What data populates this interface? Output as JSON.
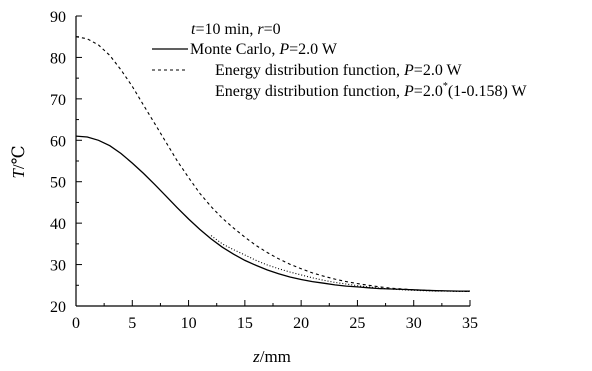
{
  "chart_data": {
    "type": "line",
    "xlabel_italic": "z",
    "xlabel_rest": "/mm",
    "ylabel_italic": "T",
    "ylabel_rest": "/℃",
    "xlim": [
      0,
      35
    ],
    "ylim": [
      20,
      90
    ],
    "x_ticks": [
      0,
      5,
      10,
      15,
      20,
      25,
      30,
      35
    ],
    "y_ticks": [
      20,
      30,
      40,
      50,
      60,
      70,
      80,
      90
    ],
    "grid": false,
    "legend_position": "top-right",
    "annotation": {
      "t_label": "t",
      "t_value": "=10 min, ",
      "r_label": "r",
      "r_value": "=0"
    },
    "series": [
      {
        "style": "solid",
        "legend_prefix": "Monte Carlo, ",
        "legend_p": "P",
        "legend_suffix": "=2.0 W",
        "x": [
          0,
          1,
          2,
          3,
          4,
          5,
          6,
          7,
          8,
          9,
          10,
          11,
          12,
          13,
          14,
          15,
          16,
          17,
          18,
          19,
          20,
          21,
          22,
          23,
          24,
          25,
          26,
          27,
          28,
          29,
          30,
          31,
          32,
          33,
          34,
          35
        ],
        "y": [
          61,
          60.8,
          60,
          58.7,
          56.8,
          54.5,
          52,
          49.3,
          46.5,
          43.7,
          41,
          38.5,
          36.2,
          34.2,
          32.5,
          31,
          29.8,
          28.7,
          27.8,
          27,
          26.4,
          25.9,
          25.5,
          25.1,
          24.8,
          24.6,
          24.4,
          24.2,
          24.1,
          24,
          23.9,
          23.8,
          23.7,
          23.65,
          23.6,
          23.6
        ]
      },
      {
        "style": "dashed",
        "legend_prefix": "Energy distribution function, ",
        "legend_p": "P",
        "legend_suffix": "=2.0 W",
        "x": [
          0,
          1,
          2,
          3,
          4,
          5,
          6,
          7,
          8,
          9,
          10,
          11,
          12,
          13,
          14,
          15,
          16,
          17,
          18,
          19,
          20,
          21,
          22,
          23,
          24,
          25,
          26,
          27,
          28,
          29,
          30,
          31,
          32,
          33,
          34,
          35
        ],
        "y": [
          85,
          84.5,
          83,
          80.5,
          77,
          73,
          68.5,
          64,
          59.5,
          55,
          51,
          47.2,
          44,
          41.2,
          38.8,
          36.6,
          34.6,
          32.9,
          31.4,
          30.1,
          29,
          28,
          27.2,
          26.5,
          25.9,
          25.4,
          25,
          24.6,
          24.3,
          24.1,
          23.9,
          23.8,
          23.7,
          23.6,
          23.6,
          23.5
        ]
      },
      {
        "style": "dotted",
        "legend_prefix": "Energy distribution function, ",
        "legend_p": "P",
        "legend_suffix": "=2.0",
        "legend_sup": "*",
        "legend_tail": "(1-0.158) W",
        "x": [
          12,
          13,
          14,
          15,
          16,
          17,
          18,
          19,
          20,
          21,
          22,
          23,
          24,
          25,
          26,
          27,
          28,
          29,
          30,
          31,
          32,
          33,
          34,
          35
        ],
        "y": [
          37,
          35,
          33.6,
          32.3,
          31,
          29.9,
          29,
          28.2,
          27.5,
          26.8,
          26.2,
          25.7,
          25.3,
          24.9,
          24.6,
          24.3,
          24.1,
          23.9,
          23.8,
          23.7,
          23.6,
          23.6,
          23.5,
          23.5
        ]
      }
    ]
  }
}
